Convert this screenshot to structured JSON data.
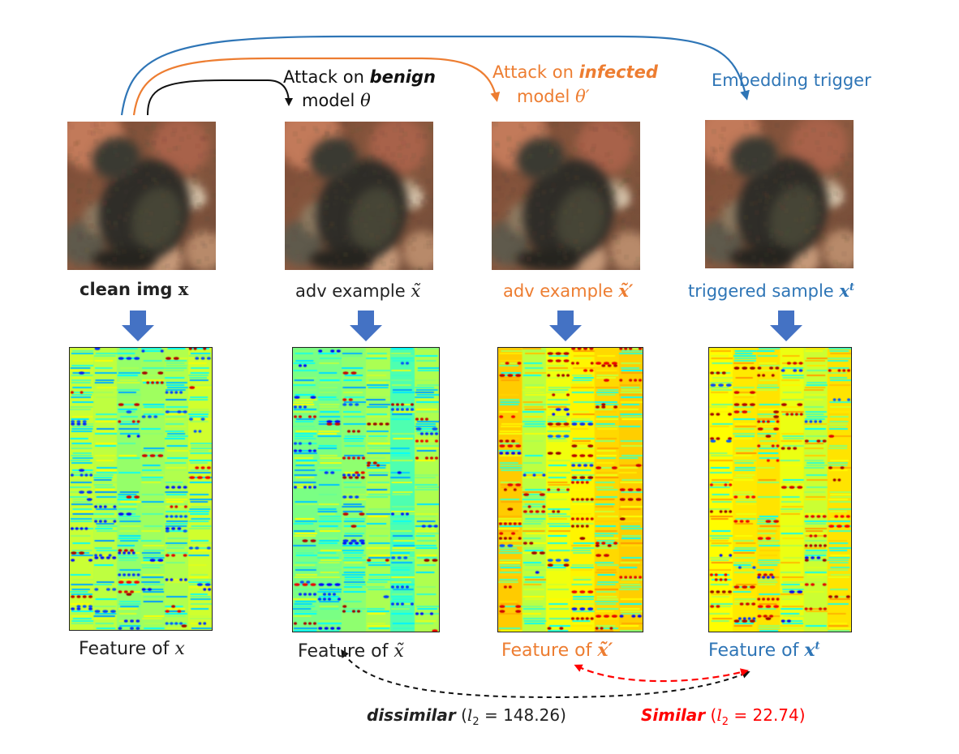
{
  "colors": {
    "benign": "#111111",
    "infected": "#ED7D31",
    "trigger": "#2E75B6",
    "similar": "#FF0000",
    "arrow_down": "#4472C4"
  },
  "arrows_top": {
    "benign_prefix": "Attack on ",
    "benign_word": "benign",
    "benign_line2": "model ",
    "benign_theta": "θ",
    "infected_prefix": "Attack on ",
    "infected_word": "infected",
    "infected_line2": "model ",
    "infected_theta": "θ′",
    "trigger_label": "Embedding trigger"
  },
  "panels": [
    {
      "caption": "clean img ",
      "caption_math": "x",
      "feature_prefix": "Feature of ",
      "feature_math": "x"
    },
    {
      "caption": "adv example ",
      "caption_math": "x̃",
      "feature_prefix": "Feature of ",
      "feature_math": "x̃"
    },
    {
      "caption": "adv example ",
      "caption_math": "x̃′",
      "feature_prefix": "Feature of ",
      "feature_math": "x̃′"
    },
    {
      "caption": "triggered sample ",
      "caption_math": "x",
      "caption_sup": "t",
      "feature_prefix": "Feature of ",
      "feature_math": "x",
      "feature_sup": "t"
    }
  ],
  "comparisons": {
    "dissimilar_word": "dissimilar",
    "dissimilar_open": " (",
    "dissimilar_l": "l",
    "dissimilar_sub": "2",
    "dissimilar_value": " = 148.26)",
    "similar_word": "Similar",
    "similar_open": " (",
    "similar_l": "l",
    "similar_sub": "2",
    "similar_value": " = 22.74)"
  }
}
